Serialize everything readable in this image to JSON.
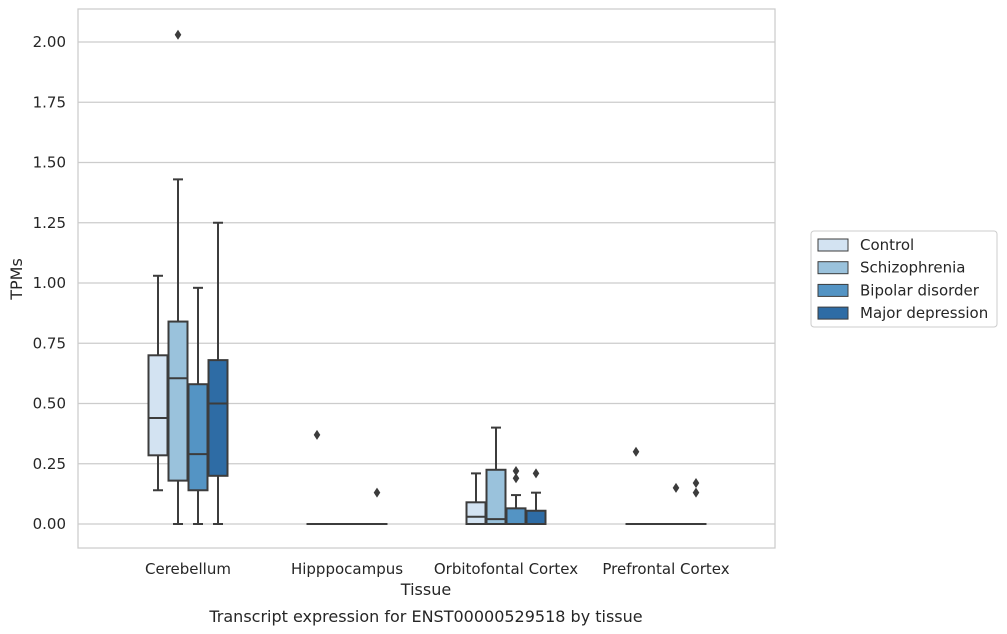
{
  "chart_data": {
    "type": "box",
    "ylabel": "TPMs",
    "xlabel": "Tissue",
    "caption": "Transcript expression for ENST00000529518 by tissue",
    "ylim": [
      -0.1,
      2.13
    ],
    "yticks": [
      "0.00",
      "0.25",
      "0.50",
      "0.75",
      "1.00",
      "1.25",
      "1.50",
      "1.75",
      "2.00"
    ],
    "grid": "horizontal",
    "legend_position": "right",
    "categories": [
      "Cerebellum",
      "Hipppocampus",
      "Orbitofontal Cortex",
      "Prefrontal Cortex"
    ],
    "series": [
      {
        "name": "Control",
        "color": "#d3e3f2",
        "boxes": [
          {
            "whislo": 0.14,
            "q1": 0.285,
            "med": 0.44,
            "q3": 0.7,
            "whishi": 1.03,
            "fliers": []
          },
          {
            "whislo": 0.0,
            "q1": 0.0,
            "med": 0.0,
            "q3": 0.0,
            "whishi": 0.0,
            "fliers": [
              0.37
            ]
          },
          {
            "whislo": 0.0,
            "q1": 0.0,
            "med": 0.03,
            "q3": 0.09,
            "whishi": 0.21,
            "fliers": []
          },
          {
            "whislo": 0.0,
            "q1": 0.0,
            "med": 0.0,
            "q3": 0.0,
            "whishi": 0.0,
            "fliers": [
              0.3
            ]
          }
        ]
      },
      {
        "name": "Schizophrenia",
        "color": "#9ac2dc",
        "boxes": [
          {
            "whislo": 0.0,
            "q1": 0.18,
            "med": 0.605,
            "q3": 0.84,
            "whishi": 1.43,
            "fliers": [
              2.03
            ]
          },
          {
            "whislo": 0.0,
            "q1": 0.0,
            "med": 0.0,
            "q3": 0.0,
            "whishi": 0.0,
            "fliers": []
          },
          {
            "whislo": 0.0,
            "q1": 0.0,
            "med": 0.02,
            "q3": 0.225,
            "whishi": 0.4,
            "fliers": []
          },
          {
            "whislo": 0.0,
            "q1": 0.0,
            "med": 0.0,
            "q3": 0.0,
            "whishi": 0.0,
            "fliers": []
          }
        ]
      },
      {
        "name": "Bipolar disorder",
        "color": "#5494c4",
        "boxes": [
          {
            "whislo": 0.0,
            "q1": 0.14,
            "med": 0.29,
            "q3": 0.58,
            "whishi": 0.98,
            "fliers": []
          },
          {
            "whislo": 0.0,
            "q1": 0.0,
            "med": 0.0,
            "q3": 0.0,
            "whishi": 0.0,
            "fliers": []
          },
          {
            "whislo": 0.0,
            "q1": 0.0,
            "med": 0.0,
            "q3": 0.065,
            "whishi": 0.12,
            "fliers": [
              0.19,
              0.22
            ]
          },
          {
            "whislo": 0.0,
            "q1": 0.0,
            "med": 0.0,
            "q3": 0.0,
            "whishi": 0.0,
            "fliers": [
              0.15
            ]
          }
        ]
      },
      {
        "name": "Major depression",
        "color": "#2e6ca5",
        "boxes": [
          {
            "whislo": 0.0,
            "q1": 0.2,
            "med": 0.5,
            "q3": 0.68,
            "whishi": 1.25,
            "fliers": []
          },
          {
            "whislo": 0.0,
            "q1": 0.0,
            "med": 0.0,
            "q3": 0.0,
            "whishi": 0.0,
            "fliers": [
              0.13
            ]
          },
          {
            "whislo": 0.0,
            "q1": 0.0,
            "med": 0.0,
            "q3": 0.055,
            "whishi": 0.13,
            "fliers": [
              0.21
            ]
          },
          {
            "whislo": 0.0,
            "q1": 0.0,
            "med": 0.0,
            "q3": 0.0,
            "whishi": 0.0,
            "fliers": [
              0.13,
              0.17
            ]
          }
        ]
      }
    ]
  }
}
